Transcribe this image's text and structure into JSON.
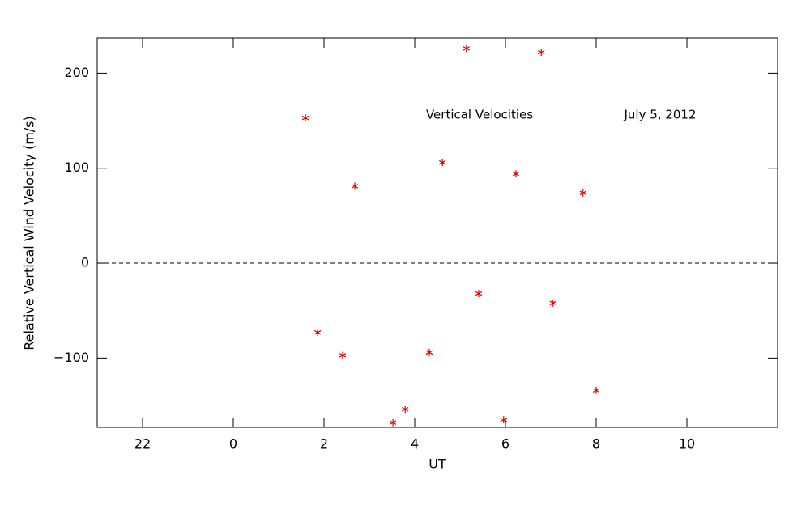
{
  "chart_data": {
    "type": "scatter",
    "annotations": [
      "Vertical Velocities",
      "July 5, 2012"
    ],
    "x_label": "UT",
    "y_label": "Relative Vertical Wind Velocity (m/s)",
    "xlim": [
      -3,
      12
    ],
    "ylim": [
      -173,
      237
    ],
    "xticks": [
      {
        "value": -2,
        "label": "22"
      },
      0,
      2,
      4,
      6,
      8,
      10
    ],
    "yticks": [
      {
        "value": -100,
        "label": "−100"
      },
      0,
      100,
      200
    ],
    "series": [
      {
        "color": "#dd0000",
        "x": [
          1.59,
          1.86,
          2.41,
          2.68,
          3.52,
          3.79,
          4.32,
          4.61,
          5.14,
          5.41,
          5.96,
          6.23,
          6.79,
          7.05,
          7.71,
          8.0
        ],
        "values": [
          153,
          -73,
          -97,
          81,
          -168,
          -154,
          -94,
          106,
          226,
          -32,
          -165,
          94,
          222,
          -42,
          74,
          -134
        ]
      }
    ]
  }
}
